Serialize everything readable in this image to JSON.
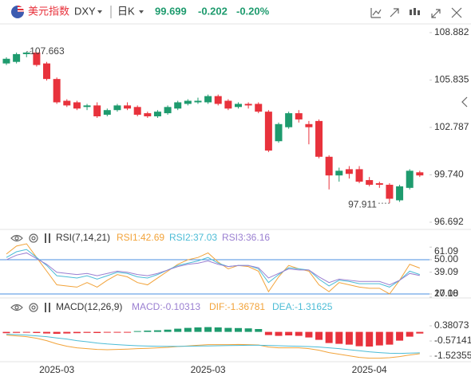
{
  "header": {
    "name": "美元指数",
    "symbol": "DXY",
    "period": "日K",
    "price": 99.699,
    "change": -0.202,
    "change_percent": "-0.20%"
  },
  "chart_data": [
    {
      "type": "candlestick",
      "categories": [
        null,
        null,
        null,
        null,
        null,
        "2025-03",
        null,
        null,
        null,
        null,
        null,
        null,
        null,
        null,
        null,
        null,
        null,
        null,
        null,
        null,
        "2025-03",
        null,
        null,
        null,
        null,
        null,
        null,
        null,
        null,
        null,
        null,
        null,
        null,
        null,
        null,
        null,
        "2025-04",
        null,
        null,
        null,
        null,
        null
      ],
      "open": [
        106.9,
        107.0,
        107.5,
        107.6,
        106.9,
        105.9,
        104.5,
        104.4,
        104.1,
        104.2,
        103.6,
        103.9,
        104.2,
        104.1,
        103.7,
        103.5,
        103.7,
        104.0,
        104.3,
        104.4,
        104.4,
        104.8,
        104.5,
        104.1,
        104.3,
        104.3,
        103.8,
        101.9,
        102.8,
        103.7,
        103.0,
        103.2,
        100.9,
        99.7,
        100.1,
        100.1,
        99.4,
        99.2,
        99.1,
        98.1,
        98.9,
        99.9
      ],
      "high": [
        107.3,
        107.6,
        107.663,
        107.6,
        107.0,
        106.0,
        104.6,
        104.5,
        104.3,
        104.4,
        104.0,
        104.3,
        104.4,
        104.2,
        103.8,
        103.9,
        104.2,
        104.5,
        104.6,
        104.7,
        104.9,
        104.9,
        104.6,
        104.4,
        104.4,
        104.4,
        103.9,
        103.1,
        103.8,
        103.9,
        103.2,
        103.3,
        101.0,
        100.2,
        100.3,
        100.3,
        99.6,
        99.3,
        99.2,
        99.1,
        100.1,
        100.0
      ],
      "low": [
        106.8,
        106.9,
        107.3,
        106.7,
        105.8,
        104.3,
        104.1,
        103.9,
        103.9,
        103.4,
        103.5,
        103.8,
        103.9,
        103.5,
        103.4,
        103.4,
        103.6,
        103.9,
        104.2,
        104.3,
        104.3,
        104.2,
        103.9,
        104.0,
        104.0,
        103.7,
        101.2,
        101.8,
        102.7,
        103.1,
        101.7,
        100.8,
        98.8,
        99.3,
        99.5,
        99.2,
        99.0,
        98.9,
        97.911,
        98.0,
        98.8,
        99.6
      ],
      "close": [
        107.2,
        107.5,
        107.6,
        106.8,
        105.9,
        104.4,
        104.2,
        104.0,
        104.2,
        103.5,
        103.9,
        104.2,
        104.0,
        103.6,
        103.5,
        103.8,
        104.1,
        104.4,
        104.5,
        104.5,
        104.8,
        104.3,
        104.0,
        104.3,
        104.2,
        103.8,
        101.3,
        103.0,
        103.7,
        103.3,
        102.8,
        100.9,
        99.7,
        100.0,
        99.8,
        99.3,
        99.1,
        99.1,
        98.2,
        99.0,
        100.0,
        99.7
      ],
      "up_color": "#1e9b6e",
      "down_color": "#e8323c",
      "ylim": [
        96.33,
        109.34
      ],
      "yticks": [
        108.882,
        105.835,
        102.787,
        {
          "value": 99.74,
          "label": "99.740"
        },
        96.692
      ]
    },
    {
      "type": "line",
      "title": "RSI(7,14,21)",
      "series": [
        {
          "name": "RSI1:42.69",
          "color": "#f2a33a",
          "values": [
            55,
            62,
            64,
            52,
            40,
            28,
            27,
            26,
            30,
            26,
            32,
            37,
            35,
            30,
            28,
            34,
            40,
            46,
            50,
            52,
            56,
            48,
            42,
            45,
            44,
            40,
            22,
            35,
            45,
            42,
            40,
            28,
            22,
            30,
            28,
            26,
            25,
            25,
            20,
            32,
            46,
            42.69
          ]
        },
        {
          "name": "RSI2:37.03",
          "color": "#4cbcd6",
          "values": [
            52,
            57,
            59,
            52,
            45,
            36,
            35,
            34,
            36,
            33,
            36,
            39,
            38,
            35,
            34,
            37,
            41,
            45,
            47,
            49,
            52,
            47,
            44,
            45,
            45,
            42,
            30,
            37,
            43,
            42,
            41,
            33,
            27,
            32,
            31,
            29,
            29,
            29,
            26,
            32,
            40,
            37.03
          ]
        },
        {
          "name": "RSI3:36.16",
          "color": "#9a7fd1",
          "values": [
            50,
            54,
            56,
            51,
            46,
            39,
            38,
            37,
            38,
            36,
            38,
            40,
            39,
            37,
            36,
            38,
            41,
            44,
            46,
            47,
            49,
            46,
            44,
            45,
            45,
            43,
            34,
            38,
            42,
            41,
            41,
            35,
            30,
            33,
            32,
            31,
            31,
            31,
            28,
            32,
            38,
            36.16
          ]
        }
      ],
      "ylim": [
        17.9,
        62.6
      ],
      "yticks": [
        61.09,
        {
          "value": 50,
          "label": "50.00"
        },
        39.09,
        {
          "value": 20,
          "label": "20.00"
        },
        17.18
      ],
      "reference_lines": [
        50,
        20
      ],
      "reference_color": "#4a8fe0"
    },
    {
      "type": "macd",
      "title": "MACD(12,26,9)",
      "histogram": {
        "name": "MACD:-0.10313",
        "color": "#9a7fd1",
        "values": [
          -0.08,
          -0.06,
          -0.05,
          -0.07,
          -0.1,
          -0.12,
          -0.1,
          -0.08,
          -0.06,
          -0.07,
          -0.05,
          -0.03,
          -0.02,
          0.05,
          0.08,
          0.1,
          0.14,
          0.2,
          0.25,
          0.28,
          0.3,
          0.28,
          0.25,
          0.24,
          0.22,
          0.18,
          -0.2,
          -0.25,
          -0.22,
          -0.25,
          -0.35,
          -0.5,
          -0.7,
          -0.75,
          -0.8,
          -0.9,
          -0.92,
          -0.85,
          -0.8,
          -0.55,
          -0.3,
          -0.10313
        ]
      },
      "series": [
        {
          "name": "DIF:-1.36781",
          "color": "#f2a33a",
          "values": [
            -0.2,
            -0.25,
            -0.3,
            -0.4,
            -0.55,
            -0.75,
            -0.9,
            -1.0,
            -1.05,
            -1.1,
            -1.12,
            -1.1,
            -1.08,
            -1.05,
            -1.03,
            -1.0,
            -0.97,
            -0.92,
            -0.88,
            -0.84,
            -0.8,
            -0.8,
            -0.8,
            -0.79,
            -0.8,
            -0.82,
            -0.95,
            -1.0,
            -1.0,
            -1.0,
            -1.05,
            -1.15,
            -1.3,
            -1.4,
            -1.5,
            -1.6,
            -1.65,
            -1.65,
            -1.62,
            -1.55,
            -1.45,
            -1.36781
          ]
        },
        {
          "name": "DEA:-1.31625",
          "color": "#4cbcd6",
          "values": [
            -0.15,
            -0.17,
            -0.2,
            -0.25,
            -0.3,
            -0.38,
            -0.45,
            -0.55,
            -0.62,
            -0.7,
            -0.76,
            -0.8,
            -0.84,
            -0.87,
            -0.89,
            -0.9,
            -0.91,
            -0.91,
            -0.9,
            -0.89,
            -0.88,
            -0.87,
            -0.86,
            -0.85,
            -0.84,
            -0.84,
            -0.85,
            -0.87,
            -0.89,
            -0.9,
            -0.92,
            -0.95,
            -1.0,
            -1.05,
            -1.12,
            -1.18,
            -1.25,
            -1.3,
            -1.34,
            -1.35,
            -1.33,
            -1.31625
          ]
        }
      ],
      "up_color": "#1e9b6e",
      "down_color": "#e8323c",
      "ylim": [
        -1.77,
        1.83
      ],
      "yticks": [
        0.38073,
        -0.57141,
        -1.52355
      ]
    }
  ]
}
